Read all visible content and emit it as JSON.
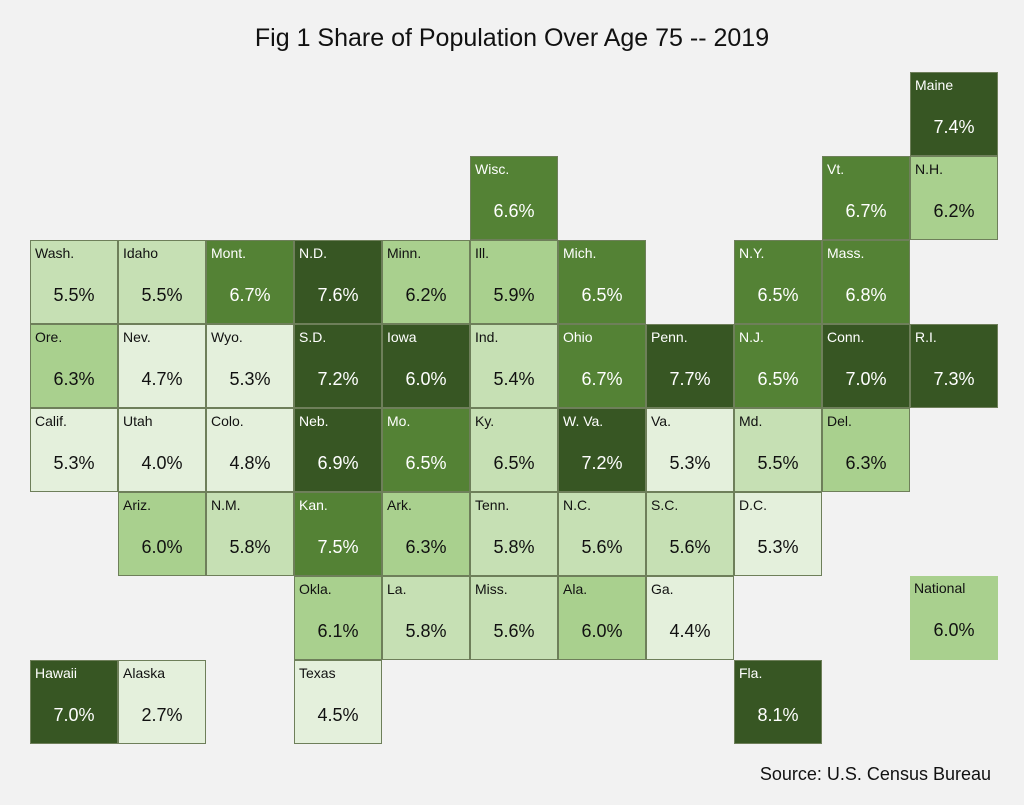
{
  "title": "Fig 1 Share of Population Over Age 75 -- 2019",
  "source": "Source: U.S. Census Bureau",
  "colors": {
    "very_light": "#e4f0dc",
    "light": "#c6e0b4",
    "medium_light": "#a9d08e",
    "medium": "#548235",
    "dark": "#375623"
  },
  "chart_data": {
    "type": "heatmap",
    "title": "Fig 1 Share of Population Over Age 75 -- 2019",
    "unit": "%",
    "tiles": [
      {
        "state": "Maine",
        "value": 7.4,
        "row": 0,
        "col": 10,
        "shade": "dark"
      },
      {
        "state": "Wisc.",
        "value": 6.6,
        "row": 1,
        "col": 5,
        "shade": "medium"
      },
      {
        "state": "Vt.",
        "value": 6.7,
        "row": 1,
        "col": 9,
        "shade": "medium"
      },
      {
        "state": "N.H.",
        "value": 6.2,
        "row": 1,
        "col": 10,
        "shade": "medium_light"
      },
      {
        "state": "Wash.",
        "value": 5.5,
        "row": 2,
        "col": 0,
        "shade": "light"
      },
      {
        "state": "Idaho",
        "value": 5.5,
        "row": 2,
        "col": 1,
        "shade": "light"
      },
      {
        "state": "Mont.",
        "value": 6.7,
        "row": 2,
        "col": 2,
        "shade": "medium"
      },
      {
        "state": "N.D.",
        "value": 7.6,
        "row": 2,
        "col": 3,
        "shade": "dark"
      },
      {
        "state": "Minn.",
        "value": 6.2,
        "row": 2,
        "col": 4,
        "shade": "medium_light"
      },
      {
        "state": "Ill.",
        "value": 5.9,
        "row": 2,
        "col": 5,
        "shade": "medium_light"
      },
      {
        "state": "Mich.",
        "value": 6.5,
        "row": 2,
        "col": 6,
        "shade": "medium"
      },
      {
        "state": "N.Y.",
        "value": 6.5,
        "row": 2,
        "col": 8,
        "shade": "medium"
      },
      {
        "state": "Mass.",
        "value": 6.8,
        "row": 2,
        "col": 9,
        "shade": "medium"
      },
      {
        "state": "Ore.",
        "value": 6.3,
        "row": 3,
        "col": 0,
        "shade": "medium_light"
      },
      {
        "state": "Nev.",
        "value": 4.7,
        "row": 3,
        "col": 1,
        "shade": "very_light"
      },
      {
        "state": "Wyo.",
        "value": 5.3,
        "row": 3,
        "col": 2,
        "shade": "very_light"
      },
      {
        "state": "S.D.",
        "value": 7.2,
        "row": 3,
        "col": 3,
        "shade": "dark"
      },
      {
        "state": "Iowa",
        "value": 6.0,
        "row": 3,
        "col": 4,
        "shade": "dark"
      },
      {
        "state": "Ind.",
        "value": 5.4,
        "row": 3,
        "col": 5,
        "shade": "light"
      },
      {
        "state": "Ohio",
        "value": 6.7,
        "row": 3,
        "col": 6,
        "shade": "medium"
      },
      {
        "state": "Penn.",
        "value": 7.7,
        "row": 3,
        "col": 7,
        "shade": "dark"
      },
      {
        "state": "N.J.",
        "value": 6.5,
        "row": 3,
        "col": 8,
        "shade": "medium"
      },
      {
        "state": "Conn.",
        "value": 7.0,
        "row": 3,
        "col": 9,
        "shade": "dark"
      },
      {
        "state": "R.I.",
        "value": 7.3,
        "row": 3,
        "col": 10,
        "shade": "dark"
      },
      {
        "state": "Calif.",
        "value": 5.3,
        "row": 4,
        "col": 0,
        "shade": "very_light"
      },
      {
        "state": "Utah",
        "value": 4.0,
        "row": 4,
        "col": 1,
        "shade": "very_light"
      },
      {
        "state": "Colo.",
        "value": 4.8,
        "row": 4,
        "col": 2,
        "shade": "very_light"
      },
      {
        "state": "Neb.",
        "value": 6.9,
        "row": 4,
        "col": 3,
        "shade": "dark"
      },
      {
        "state": "Mo.",
        "value": 6.5,
        "row": 4,
        "col": 4,
        "shade": "medium"
      },
      {
        "state": "Ky.",
        "value": 6.5,
        "row": 4,
        "col": 5,
        "shade": "light"
      },
      {
        "state": "W. Va.",
        "value": 7.2,
        "row": 4,
        "col": 6,
        "shade": "dark"
      },
      {
        "state": "Va.",
        "value": 5.3,
        "row": 4,
        "col": 7,
        "shade": "very_light"
      },
      {
        "state": "Md.",
        "value": 5.5,
        "row": 4,
        "col": 8,
        "shade": "light"
      },
      {
        "state": "Del.",
        "value": 6.3,
        "row": 4,
        "col": 9,
        "shade": "medium_light"
      },
      {
        "state": "Ariz.",
        "value": 6.0,
        "row": 5,
        "col": 1,
        "shade": "medium_light"
      },
      {
        "state": "N.M.",
        "value": 5.8,
        "row": 5,
        "col": 2,
        "shade": "light"
      },
      {
        "state": "Kan.",
        "value": 7.5,
        "row": 5,
        "col": 3,
        "shade": "medium"
      },
      {
        "state": "Ark.",
        "value": 6.3,
        "row": 5,
        "col": 4,
        "shade": "medium_light"
      },
      {
        "state": "Tenn.",
        "value": 5.8,
        "row": 5,
        "col": 5,
        "shade": "light"
      },
      {
        "state": "N.C.",
        "value": 5.6,
        "row": 5,
        "col": 6,
        "shade": "light"
      },
      {
        "state": "S.C.",
        "value": 5.6,
        "row": 5,
        "col": 7,
        "shade": "light"
      },
      {
        "state": "D.C.",
        "value": 5.3,
        "row": 5,
        "col": 8,
        "shade": "very_light"
      },
      {
        "state": "Okla.",
        "value": 6.1,
        "row": 6,
        "col": 3,
        "shade": "medium_light"
      },
      {
        "state": "La.",
        "value": 5.8,
        "row": 6,
        "col": 4,
        "shade": "light"
      },
      {
        "state": "Miss.",
        "value": 5.6,
        "row": 6,
        "col": 5,
        "shade": "light"
      },
      {
        "state": "Ala.",
        "value": 6.0,
        "row": 6,
        "col": 6,
        "shade": "medium_light"
      },
      {
        "state": "Ga.",
        "value": 4.4,
        "row": 6,
        "col": 7,
        "shade": "very_light"
      },
      {
        "state": "National",
        "value": 6.0,
        "row": 6,
        "col": 10,
        "shade": "medium_light",
        "national": true
      },
      {
        "state": "Hawaii",
        "value": 7.0,
        "row": 7,
        "col": 0,
        "shade": "dark"
      },
      {
        "state": "Alaska",
        "value": 2.7,
        "row": 7,
        "col": 1,
        "shade": "very_light"
      },
      {
        "state": "Texas",
        "value": 4.5,
        "row": 7,
        "col": 3,
        "shade": "very_light"
      },
      {
        "state": "Fla.",
        "value": 8.1,
        "row": 7,
        "col": 8,
        "shade": "dark"
      }
    ]
  }
}
